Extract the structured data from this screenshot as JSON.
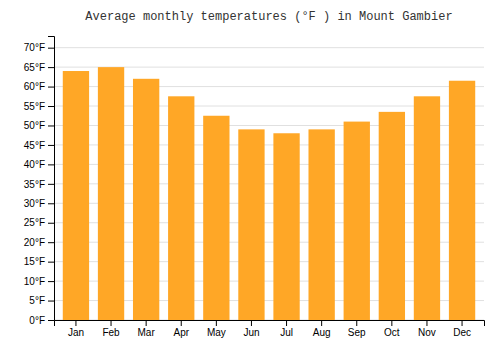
{
  "chart_data": {
    "type": "bar",
    "title": "Average monthly temperatures (°F ) in Mount Gambier",
    "categories": [
      "Jan",
      "Feb",
      "Mar",
      "Apr",
      "May",
      "Jun",
      "Jul",
      "Aug",
      "Sep",
      "Oct",
      "Nov",
      "Dec"
    ],
    "values": [
      64,
      65,
      62,
      57.5,
      52.5,
      49,
      48,
      49,
      51,
      53.5,
      57.5,
      61.5
    ],
    "color": "#FFA726",
    "ylim": [
      0,
      73
    ],
    "yticks": [
      {
        "value": 0,
        "label": "0°F"
      },
      {
        "value": 5,
        "label": "5°F"
      },
      {
        "value": 10,
        "label": "10°F"
      },
      {
        "value": 15,
        "label": "15°F"
      },
      {
        "value": 20,
        "label": "20°F"
      },
      {
        "value": 25,
        "label": "25°F"
      },
      {
        "value": 30,
        "label": "30°F"
      },
      {
        "value": 35,
        "label": "35°F"
      },
      {
        "value": 40,
        "label": "40°F"
      },
      {
        "value": 45,
        "label": "45°F"
      },
      {
        "value": 50,
        "label": "50°F"
      },
      {
        "value": 55,
        "label": "55°F"
      },
      {
        "value": 60,
        "label": "60°F"
      },
      {
        "value": 65,
        "label": "65°F"
      },
      {
        "value": 70,
        "label": "70°F"
      }
    ],
    "grid": true
  }
}
